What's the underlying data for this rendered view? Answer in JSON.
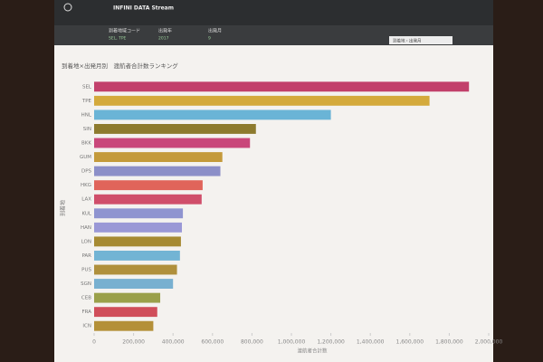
{
  "app_title": "INFINI DATA Stream",
  "filters": [
    {
      "label": "到着地域コード",
      "value": "SEL, TPE"
    },
    {
      "label": "出発年",
      "value": "2017"
    },
    {
      "label": "出発月",
      "value": "9"
    }
  ],
  "search": "到着地・出発月",
  "chart_data": {
    "type": "hbar",
    "title": "到着地×出発月別　渡航者合計数ランキング",
    "x_label": "渡航者合計数",
    "y_label": "到着地",
    "categories": [
      "SEL",
      "TPE",
      "HNL",
      "SIN",
      "BKK",
      "GUM",
      "DPS",
      "HKG",
      "LAX",
      "KUL",
      "HAN",
      "LON",
      "PAR",
      "PUS",
      "SGN",
      "CEB",
      "FRA",
      "ICN"
    ],
    "values": [
      1900000,
      1700000,
      1200000,
      820000,
      790000,
      650000,
      640000,
      550000,
      545000,
      450000,
      445000,
      440000,
      435000,
      420000,
      400000,
      335000,
      320000,
      300000
    ],
    "colors": [
      "#c2416b",
      "#d4aa3c",
      "#6ab4d6",
      "#8d7a2e",
      "#c9477a",
      "#c49a3a",
      "#8c8fc8",
      "#e0645a",
      "#d04e6a",
      "#8f94d0",
      "#9a98d6",
      "#a68a32",
      "#72b4d4",
      "#b0903c",
      "#78b0d0",
      "#9aa04a",
      "#d04e5a",
      "#b49038"
    ],
    "xlim": [
      0,
      2000000
    ],
    "xticks": [
      0,
      {
        "value": 200000,
        "label": "200,000"
      },
      {
        "value": 400000,
        "label": "400,000"
      },
      {
        "value": 600000,
        "label": "600,000"
      },
      {
        "value": 800000,
        "label": "800,000"
      },
      {
        "value": 1000000,
        "label": "1,000,000"
      },
      {
        "value": 1200000,
        "label": "1,200,000"
      },
      {
        "value": 1400000,
        "label": "1,400,000"
      },
      {
        "value": 1600000,
        "label": "1,600,000"
      },
      {
        "value": 1800000,
        "label": "1,800,000"
      },
      {
        "value": 2000000,
        "label": "2,000,000"
      }
    ]
  }
}
